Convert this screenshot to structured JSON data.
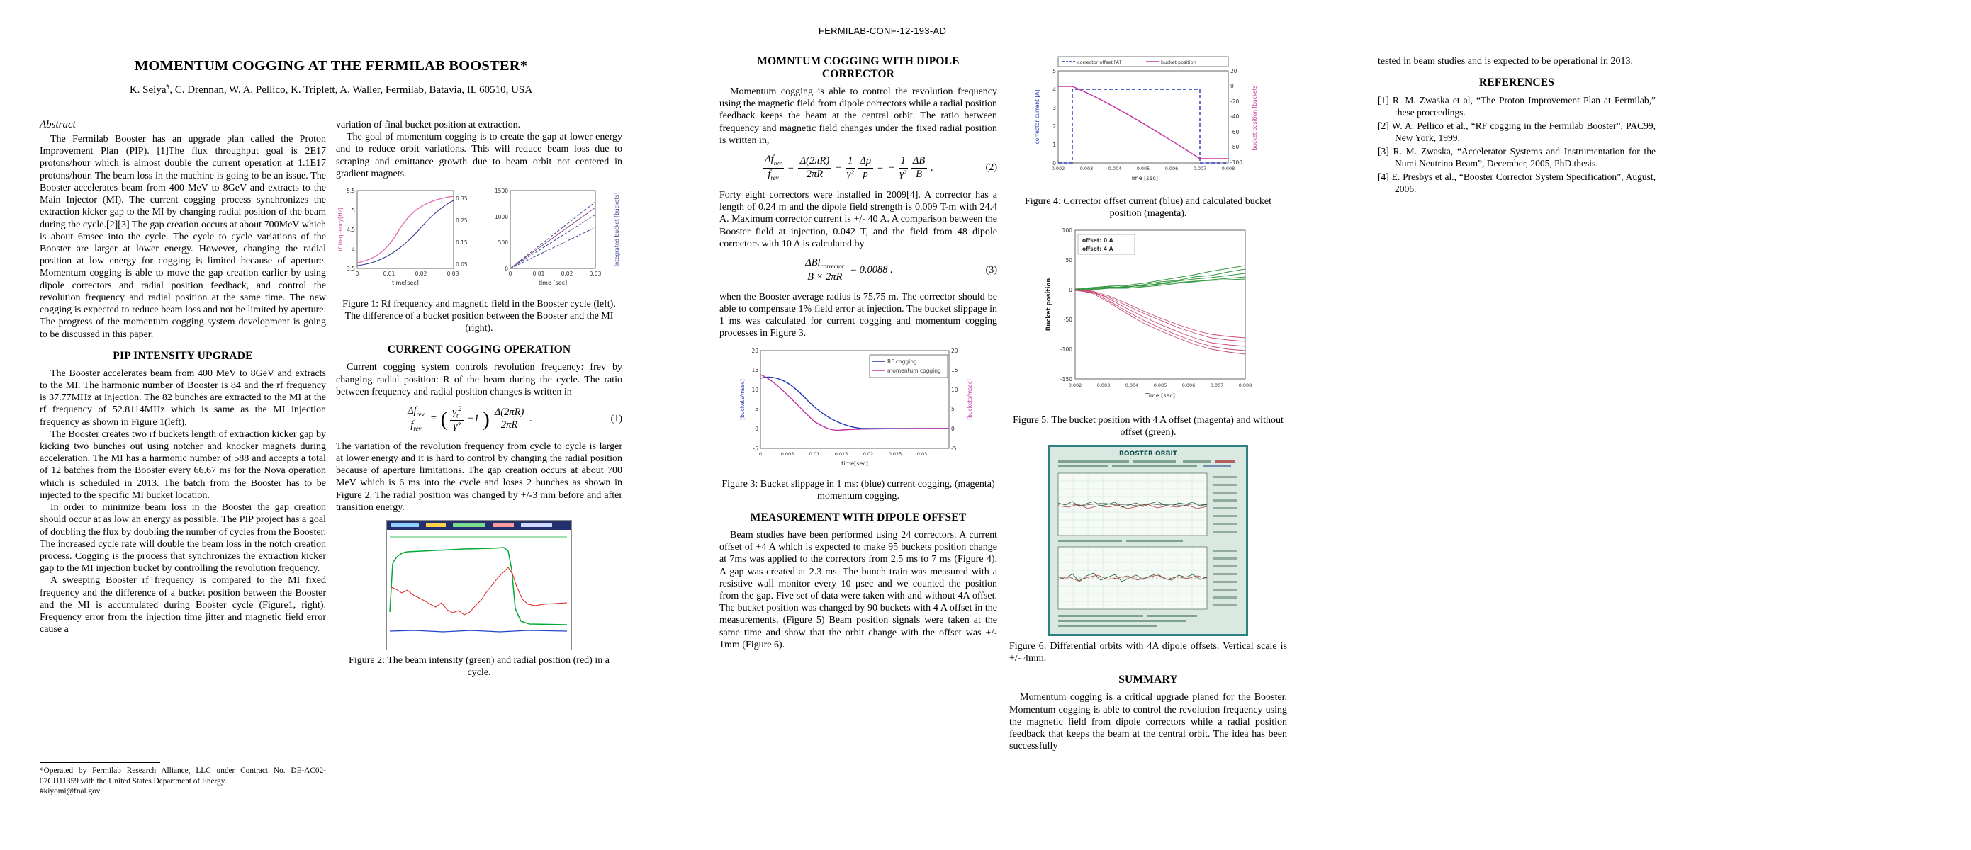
{
  "report_number": "FERMILAB-CONF-12-193-AD",
  "title": "MOMENTUM COGGING AT THE FERMILAB BOOSTER*",
  "authors": {
    "lead": "K. Seiya",
    "lead_sup": "#",
    "rest": ", C. Drennan, W. A. Pellico, K. Triplett, A. Waller, Fermilab, Batavia, IL 60510, USA"
  },
  "abstract": {
    "heading": "Abstract",
    "text": "The Fermilab Booster has an upgrade plan called the Proton Improvement Plan (PIP). [1]The flux throughput goal is 2E17 protons/hour which is almost double the current operation at 1.1E17 protons/hour. The beam loss in the machine is going to be an issue. The Booster accelerates beam from 400 MeV to 8GeV and extracts to the Main Injector (MI). The current cogging process synchronizes the extraction kicker gap to the MI by changing radial position of the beam during the cycle.[2][3] The gap creation occurs at about 700MeV which is about 6msec into the cycle. The cycle to cycle variations of the Booster are larger at lower energy. However, changing the radial position at low energy for cogging is limited because of aperture. Momentum cogging is able to move the gap creation earlier by using dipole correctors and radial position feedback, and control the revolution frequency and radial position at the same time. The new cogging is expected to reduce beam loss and not be limited by aperture. The progress of the momentum cogging system development is going to be discussed in this paper."
  },
  "pip": {
    "heading": "PIP INTENSITY UPGRADE",
    "paragraphs": [
      "The Booster accelerates beam from 400 MeV to 8GeV and extracts to the MI. The harmonic number of Booster is 84 and the rf frequency is 37.77MHz at injection. The 82 bunches are extracted to the MI at the rf frequency of 52.8114MHz which is same as the MI injection frequency as shown in Figure 1(left).",
      "The Booster creates two rf buckets length of extraction kicker gap by kicking two bunches out using notcher and knocker magnets during acceleration. The MI has a harmonic number of 588 and accepts a total of 12 batches from the Booster every 66.67 ms for the Nova operation which is scheduled in 2013. The batch from the Booster has to be injected to the specific MI bucket location.",
      "In order to minimize beam loss in the Booster the gap creation should occur at as low an energy as possible. The PIP project has a goal of doubling the flux by doubling the number of cycles from the Booster. The increased cycle rate will double the beam loss in the notch creation process. Cogging is the process that synchronizes the extraction kicker gap to the MI injection bucket by controlling the revolution frequency.",
      "A sweeping Booster rf frequency is compared to the MI fixed frequency and the difference of a bucket position between the Booster and the MI is accumulated during Booster cycle (Figure1, right). Frequency error from the injection time jitter and magnetic field error cause a"
    ]
  },
  "col2": {
    "continuation": "variation of final bucket position at extraction.",
    "goal_paragraph": "The goal of momentum cogging is to create the gap at lower energy and to reduce orbit variations. This will reduce beam loss due to scraping and emittance growth due to beam orbit not centered in gradient magnets."
  },
  "current": {
    "heading": "CURRENT COGGING OPERATION",
    "p1": "Current cogging system controls revolution frequency: frev by changing radial position: R of the beam during the cycle. The ratio between frequency and radial position changes is written in",
    "p2": "The variation of the revolution frequency from cycle to cycle is larger at lower energy and it is hard to control by changing the radial position because of aperture limitations. The gap creation occurs at about 700 MeV which is 6 ms into the cycle and loses 2 bunches as shown in Figure 2. The radial position was changed by +/-3 mm before and after transition energy."
  },
  "momentum": {
    "heading": "MOMNTUM COGGING WITH DIPOLE CORRECTOR",
    "p1": "Momentum cogging is able to control the revolution frequency using the magnetic field from dipole correctors while a radial position feedback keeps the beam at the central orbit. The ratio between frequency and magnetic field changes under the fixed radial position is written in,",
    "p2": "Forty eight correctors were installed in 2009[4]. A corrector has a length of 0.24 m and the dipole field strength is 0.009 T-m with 24.4 A.  Maximum corrector current is +/- 40 A. A comparison between the Booster field at injection, 0.042 T, and the field from 48 dipole correctors with 10 A is calculated by",
    "p3": "when the Booster average radius is 75.75 m. The corrector should be able to compensate 1% field error at injection. The bucket slippage in 1 ms was calculated for current cogging and momentum cogging processes in Figure 3."
  },
  "measurement": {
    "heading": "MEASUREMENT WITH DIPOLE OFFSET",
    "p1": "Beam studies have been performed using 24 correctors. A current offset of +4 A which is expected to make 95 buckets position change at 7ms was applied to the correctors from 2.5 ms to 7 ms (Figure 4). A gap was created at 2.3 ms. The bunch train was measured with a resistive wall monitor every 10 μsec and we counted the position from the gap. Five set of data were taken with and without 4A offset. The bucket position was changed by 90 buckets with 4 A offset in the measurements. (Figure 5) Beam position signals were taken at the same time and show that the orbit change with the offset was +/- 1mm (Figure 6)."
  },
  "summary": {
    "heading": "SUMMARY",
    "p1": "Momentum cogging is a critical upgrade planed for the Booster. Momentum cogging is able to control the revolution frequency using the magnetic field from dipole correctors while a radial position feedback that keeps the beam at the central orbit. The idea has been successfully"
  },
  "page3": {
    "continuation": "tested in beam studies and is expected to be operational in 2013."
  },
  "references": {
    "heading": "REFERENCES",
    "items": [
      "[1]  R. M. Zwaska et al, “The Proton Improvement Plan at Fermilab,” these proceedings.",
      "[2]  W. A. Pellico et al., “RF cogging in the Fermilab Booster”, PAC99, New York, 1999.",
      "[3]  R. M. Zwaska, “Accelerator Systems and Instrumentation for the Numi Neutrino Beam”, December, 2005, PhD thesis.",
      "[4]  E. Presbys et al., “Booster Corrector System Specification”, August, 2006."
    ]
  },
  "footnote": {
    "line1": "*Operated by Fermilab Research Alliance, LLC under Contract No. DE-AC02-07CH11359 with the United States Department of Energy.",
    "line2": "#kiyomi@fnal.gov"
  },
  "equations": {
    "eq1": {
      "lhs_top_base": "Δf",
      "lhs_top_sub": "rev",
      "lhs_bot_base": "f",
      "lhs_bot_sub": "rev",
      "equals": "=",
      "paren_open": "(",
      "f2_top_base": "γ",
      "f2_top_sub": "t",
      "f2_top_sup": "2",
      "f2_bot": "γ²",
      "minus_one": "−1",
      "paren_close": ")",
      "f3_top": "Δ(2πR)",
      "f3_bot": "2πR",
      "period": ".",
      "number": "(1)"
    },
    "eq2": {
      "lhs_top_base": "Δf",
      "lhs_top_sub": "rev",
      "lhs_bot_base": "f",
      "lhs_bot_sub": "rev",
      "equals1": "=",
      "f2_top": "Δ(2πR)",
      "f2_bot": "2πR",
      "minus": "−",
      "f3_top": "1",
      "f3_bot": "γ²",
      "f4_top": "Δp",
      "f4_bot": "p",
      "equals2": "=",
      "minus2": "−",
      "f5_top": "1",
      "f5_bot": "γ²",
      "f6_top": "ΔB",
      "f6_bot": "B",
      "period": ".",
      "number": "(2)"
    },
    "eq3": {
      "f_top_base": "ΔBl",
      "f_top_sub": "corrector",
      "f_bot": "B × 2πR",
      "rhs": "= 0.0088 .",
      "number": "(3)"
    }
  },
  "figures": {
    "fig1": {
      "caption": "Figure 1: Rf frequency and magnetic field in the Booster cycle (left). The difference of a bucket position between the Booster and the MI (right).",
      "left": {
        "ylabel": "rf frequency[Hz]",
        "yticks": [
          "5.5",
          "5",
          "4.5",
          "4",
          "3.5"
        ],
        "y2ticks": [
          "0.35",
          "0.25",
          "0.15",
          "0.05"
        ],
        "xlabel": "time[sec]",
        "xticks": [
          "0",
          "0.01",
          "0.02",
          "0.03"
        ]
      },
      "right": {
        "ylabel": "Integrated bucket [buckets]",
        "yticks": [
          "1500",
          "1000",
          "500",
          "0"
        ],
        "xlabel": "time [sec]",
        "xticks": [
          "0",
          "0.01",
          "0.02",
          "0.03"
        ]
      },
      "chart_data": {
        "type": "line",
        "series": [
          {
            "name": "rf frequency",
            "color": "#e070b5",
            "points": [
              [
                0,
                37.8
              ],
              [
                0.01,
                42
              ],
              [
                0.02,
                50
              ],
              [
                0.033,
                52.8
              ]
            ]
          },
          {
            "name": "magnetic field",
            "color": "#39418f",
            "points": [
              [
                0,
                0.05
              ],
              [
                0.01,
                0.1
              ],
              [
                0.02,
                0.25
              ],
              [
                0.033,
                0.35
              ]
            ]
          },
          {
            "name": "integrated bucket position",
            "color": "#39418f",
            "points": [
              [
                0,
                0
              ],
              [
                0.033,
                1500
              ]
            ]
          }
        ]
      }
    },
    "fig2": {
      "caption": "Figure 2: The beam intensity (green) and radial position (red) in a cycle.",
      "chart_data": {
        "type": "line",
        "series": [
          {
            "name": "beam intensity",
            "color": "green"
          },
          {
            "name": "radial position",
            "color": "red"
          }
        ]
      }
    },
    "fig3": {
      "caption": "Figure 3: Bucket slippage in 1 ms: (blue) current cogging, (magenta) momentum cogging.",
      "legend": [
        "RF cogging",
        "momentum cogging"
      ],
      "ylabel_left": "[buckets/msec]",
      "ylabel_right": "[buckets/msec]",
      "yticks": [
        "20",
        "15",
        "10",
        "5",
        "0",
        "-5"
      ],
      "xlabel": "time[sec]",
      "xticks": [
        "0",
        "0.005",
        "0.01",
        "0.015",
        "0.02",
        "0.025",
        "0.03"
      ],
      "chart_data": {
        "type": "line",
        "xlim": [
          0,
          0.035
        ],
        "ylim": [
          -5,
          20
        ],
        "series": [
          {
            "name": "RF cogging",
            "color": "#2233bb",
            "points": [
              [
                0,
                13
              ],
              [
                0.005,
                8
              ],
              [
                0.01,
                2
              ],
              [
                0.015,
                0
              ],
              [
                0.035,
                0
              ]
            ]
          },
          {
            "name": "momentum cogging",
            "color": "#c231a1",
            "points": [
              [
                0,
                14
              ],
              [
                0.004,
                7
              ],
              [
                0.008,
                1
              ],
              [
                0.012,
                -0.5
              ],
              [
                0.035,
                0
              ]
            ]
          }
        ]
      }
    },
    "fig4": {
      "caption": "Figure 4: Corrector offset current (blue) and calculated bucket position (magenta).",
      "legend": [
        "corrector offset [A]",
        "bucket position"
      ],
      "ylabel_left": "corrector current [A]",
      "ylabel_right": "bucket position [buckets]",
      "yticks_left": [
        "5",
        "4",
        "3",
        "2",
        "1",
        "0"
      ],
      "yticks_right": [
        "20",
        "0",
        "-20",
        "-40",
        "-60",
        "-80",
        "-100"
      ],
      "xlabel": "Time [sec]",
      "xticks": [
        "0.002",
        "0.003",
        "0.004",
        "0.005",
        "0.006",
        "0.007",
        "0.008"
      ],
      "chart_data": {
        "type": "line",
        "xlim": [
          0.002,
          0.008
        ],
        "series": [
          {
            "name": "corrector offset current",
            "color": "#2233bb",
            "axis": "left",
            "points": [
              [
                0.002,
                0
              ],
              [
                0.0025,
                0
              ],
              [
                0.0025,
                4
              ],
              [
                0.007,
                4
              ],
              [
                0.007,
                0
              ],
              [
                0.008,
                0
              ]
            ]
          },
          {
            "name": "calculated bucket position",
            "color": "#c231a1",
            "axis": "right",
            "points": [
              [
                0.002,
                0
              ],
              [
                0.0025,
                0
              ],
              [
                0.004,
                -25
              ],
              [
                0.0055,
                -65
              ],
              [
                0.007,
                -95
              ],
              [
                0.008,
                -95
              ]
            ]
          }
        ]
      }
    },
    "fig5": {
      "caption": "Figure 5: The bucket position with 4 A offset (magenta) and without offset (green).",
      "legend": [
        "offset: 0 A",
        "offset: 4 A"
      ],
      "ylabel": "Bucket position",
      "yticks": [
        "100",
        "50",
        "0",
        "-50",
        "-100",
        "-150"
      ],
      "xlabel": "Time [sec]",
      "xticks": [
        "0.002",
        "0.003",
        "0.004",
        "0.005",
        "0.006",
        "0.007",
        "0.008"
      ],
      "chart_data": {
        "type": "line",
        "xlim": [
          0.002,
          0.008
        ],
        "ylim": [
          -150,
          100
        ],
        "series": [
          {
            "name": "offset: 0 A",
            "color": "#1b8a2a",
            "trend": "from 0 to about +20/+40 buckets"
          },
          {
            "name": "offset: 4 A",
            "color": "#c23866",
            "trend": "from 0 to about -90/-110 buckets"
          }
        ]
      }
    },
    "fig6": {
      "title": "BOOSTER ORBIT",
      "caption": "Figure 6: Differential orbits with 4A dipole offsets. Vertical scale is +/- 4mm."
    }
  },
  "colors": {
    "fig_pink": "#e070b5",
    "fig_navy": "#39418f",
    "fig_blue": "#2233bb",
    "fig_magenta": "#c231a1",
    "fig_green": "#1b8a2a",
    "fig_red": "#cc2244",
    "console_teal": "#2e8080"
  }
}
